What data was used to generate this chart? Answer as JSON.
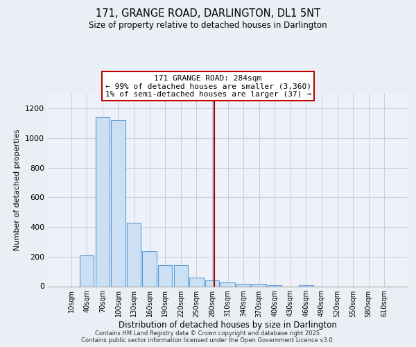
{
  "title_line1": "171, GRANGE ROAD, DARLINGTON, DL1 5NT",
  "title_line2": "Size of property relative to detached houses in Darlington",
  "xlabel": "Distribution of detached houses by size in Darlington",
  "ylabel": "Number of detached properties",
  "bar_categories": [
    "10sqm",
    "40sqm",
    "70sqm",
    "100sqm",
    "130sqm",
    "160sqm",
    "190sqm",
    "220sqm",
    "250sqm",
    "280sqm",
    "310sqm",
    "340sqm",
    "370sqm",
    "400sqm",
    "430sqm",
    "460sqm",
    "490sqm",
    "520sqm",
    "550sqm",
    "580sqm",
    "610sqm"
  ],
  "bar_values": [
    0,
    210,
    1140,
    1120,
    430,
    238,
    145,
    145,
    60,
    40,
    25,
    15,
    15,
    5,
    0,
    5,
    0,
    0,
    0,
    0,
    0
  ],
  "bar_color": "#cce0f5",
  "bar_edge_color": "#5b9bd5",
  "vline_color": "#8b0000",
  "annotation_title": "171 GRANGE ROAD: 284sqm",
  "annotation_line2": "← 99% of detached houses are smaller (3,360)",
  "annotation_line3": "1% of semi-detached houses are larger (37) →",
  "annotation_box_edge": "#c00000",
  "ylim": [
    0,
    1300
  ],
  "yticks": [
    0,
    200,
    400,
    600,
    800,
    1000,
    1200
  ],
  "bg_color": "#eaeef5",
  "plot_bg_color": "#eef2f8",
  "grid_color": "#c8ccd8",
  "footer_line1": "Contains HM Land Registry data © Crown copyright and database right 2025.",
  "footer_line2": "Contains public sector information licensed under the Open Government Licence v3.0."
}
